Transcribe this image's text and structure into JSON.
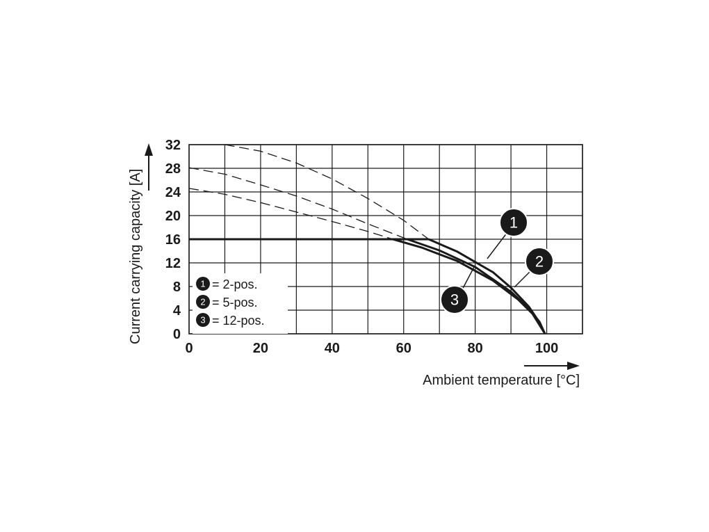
{
  "chart_data": {
    "type": "line",
    "xlabel": "Ambient temperature [°C]",
    "ylabel": "Current carrying capacity [A]",
    "xlim": [
      0,
      110
    ],
    "ylim": [
      0,
      32
    ],
    "x_ticks": [
      0,
      20,
      40,
      60,
      80,
      100
    ],
    "y_ticks": [
      0,
      4,
      8,
      12,
      16,
      20,
      24,
      28,
      32
    ],
    "grid": true,
    "limit_line": {
      "y": 16
    },
    "series": [
      {
        "name": "1",
        "label": "= 2-pos.",
        "derating_curve": [
          [
            10,
            32.0
          ],
          [
            20,
            30.9
          ],
          [
            30,
            28.9
          ],
          [
            40,
            26.2
          ],
          [
            50,
            22.9
          ],
          [
            60,
            19.2
          ],
          [
            67,
            16.0
          ],
          [
            75,
            13.9
          ],
          [
            85,
            10.4
          ],
          [
            90,
            7.8
          ],
          [
            95,
            4.6
          ],
          [
            97,
            2.8
          ],
          [
            99.5,
            0
          ]
        ]
      },
      {
        "name": "2",
        "label": "= 5-pos.",
        "derating_curve": [
          [
            0,
            28.1
          ],
          [
            10,
            27.0
          ],
          [
            20,
            25.2
          ],
          [
            30,
            23.3
          ],
          [
            40,
            21.1
          ],
          [
            50,
            18.6
          ],
          [
            61,
            16.0
          ],
          [
            70,
            14.1
          ],
          [
            80,
            11.3
          ],
          [
            90,
            7.1
          ],
          [
            95,
            4.3
          ],
          [
            98,
            2.0
          ],
          [
            99.5,
            0
          ]
        ]
      },
      {
        "name": "3",
        "label": "= 12-pos.",
        "derating_curve": [
          [
            0,
            24.6
          ],
          [
            10,
            23.6
          ],
          [
            20,
            22.2
          ],
          [
            30,
            20.6
          ],
          [
            40,
            19.0
          ],
          [
            50,
            17.3
          ],
          [
            57,
            16.0
          ],
          [
            65,
            14.6
          ],
          [
            75,
            12.3
          ],
          [
            85,
            9.0
          ],
          [
            92,
            5.8
          ],
          [
            96,
            3.4
          ],
          [
            99.5,
            0
          ]
        ]
      }
    ],
    "callout_labels": [
      "1",
      "2",
      "3"
    ],
    "legend_position": "bottom-left"
  }
}
